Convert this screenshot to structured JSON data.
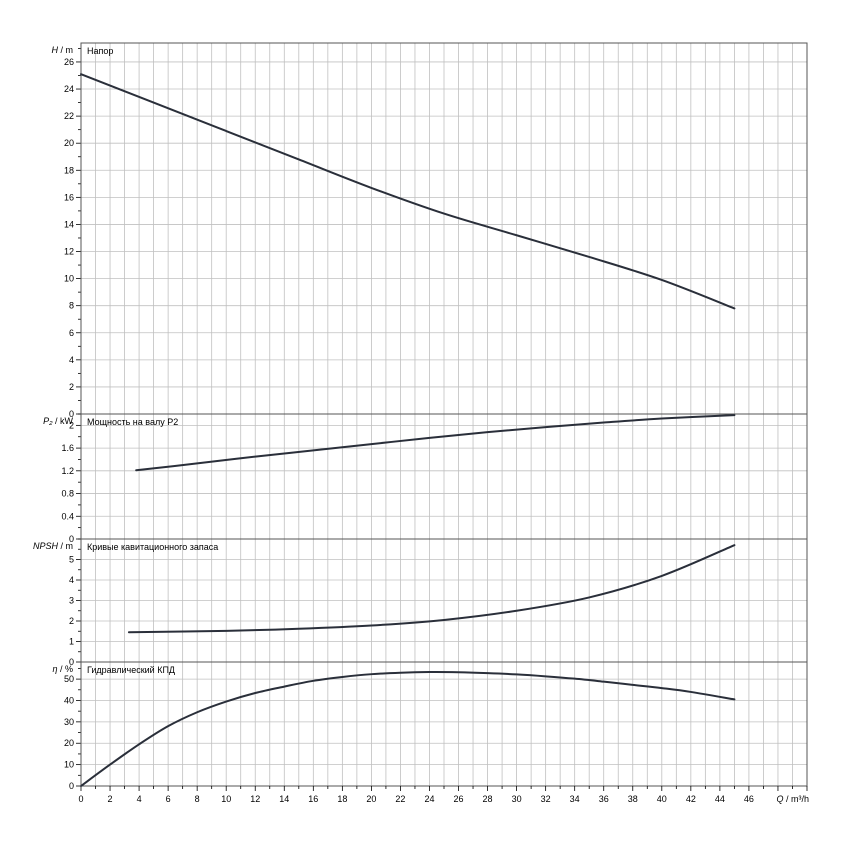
{
  "chart_data": {
    "type": "line",
    "colors": {
      "grid": "#c0c0c0",
      "frame": "#555555",
      "curve": "#2a2f3a",
      "background": "#ffffff"
    },
    "xaxis": {
      "label_italic": "Q",
      "label_unit": " / m³/h",
      "range": [
        0,
        50
      ],
      "ticks": [
        0,
        2,
        4,
        6,
        8,
        10,
        12,
        14,
        16,
        18,
        20,
        22,
        24,
        26,
        28,
        30,
        32,
        34,
        36,
        38,
        40,
        42,
        44,
        46
      ]
    },
    "panels": [
      {
        "title": "Напор",
        "ylabel_italic": "H",
        "ylabel_unit": " / m",
        "ylim": [
          0,
          27.4
        ],
        "ticks": [
          0,
          2,
          4,
          6,
          8,
          10,
          12,
          14,
          16,
          18,
          20,
          22,
          24,
          26
        ],
        "series": [
          {
            "x": [
              0,
              5,
              10,
              15,
              20,
              25,
              30,
              35,
              40,
              45
            ],
            "y": [
              25.1,
              23.0,
              20.9,
              18.8,
              16.7,
              14.8,
              13.2,
              11.6,
              9.9,
              7.8
            ]
          }
        ]
      },
      {
        "title": "Мощность на валу P2",
        "ylabel_italic": "P₂",
        "ylabel_unit": " / kW",
        "ylim": [
          0,
          2.2
        ],
        "ticks": [
          0,
          0.4,
          0.8,
          1.2,
          1.6,
          2
        ],
        "series": [
          {
            "x": [
              3.8,
              8,
              12,
              16,
              20,
              24,
              28,
              32,
              36,
              40,
              45
            ],
            "y": [
              1.21,
              1.33,
              1.45,
              1.56,
              1.67,
              1.78,
              1.88,
              1.97,
              2.05,
              2.12,
              2.18
            ]
          }
        ]
      },
      {
        "title": "Кривые кавитационного запаса",
        "ylabel_italic": "NPSH",
        "ylabel_unit": " / m",
        "ylim": [
          0,
          6
        ],
        "ticks": [
          0,
          1,
          2,
          3,
          4,
          5
        ],
        "series": [
          {
            "x": [
              3.3,
              10,
              15,
              20,
              25,
              30,
              35,
              40,
              45
            ],
            "y": [
              1.45,
              1.52,
              1.62,
              1.78,
              2.05,
              2.5,
              3.15,
              4.2,
              5.7
            ]
          }
        ]
      },
      {
        "title": "Гидравлический КПД",
        "ylabel_italic": "η",
        "ylabel_unit": " / %",
        "ylim": [
          0,
          58
        ],
        "ticks": [
          0,
          10,
          20,
          30,
          40,
          50
        ],
        "series": [
          {
            "x": [
              0,
              2,
              4,
              6,
              8,
              10,
              12,
              14,
              16,
              18,
              20,
              22,
              24,
              26,
              28,
              30,
              32,
              34,
              36,
              38,
              40,
              42,
              45
            ],
            "y": [
              0,
              10,
              19.5,
              28,
              34.5,
              39.5,
              43.5,
              46.5,
              49.2,
              51,
              52.3,
              53,
              53.3,
              53.2,
              52.8,
              52.2,
              51.3,
              50.2,
              48.8,
              47.3,
              45.8,
              44,
              40.5
            ]
          }
        ]
      }
    ]
  }
}
